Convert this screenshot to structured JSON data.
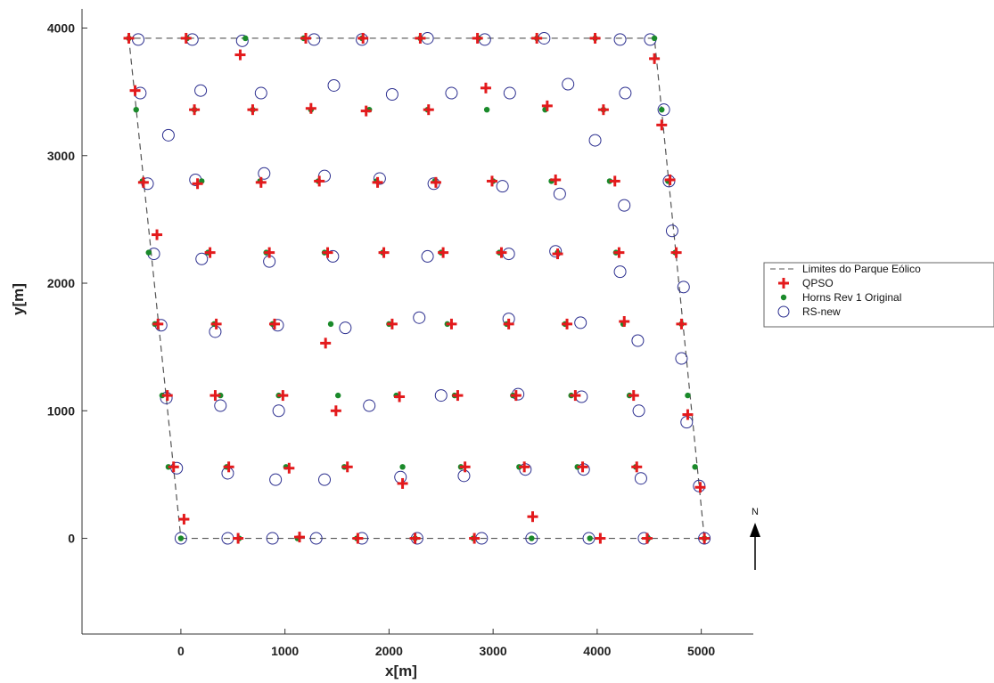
{
  "chart_data": {
    "type": "scatter",
    "xlabel": "x[m]",
    "ylabel": "y[m]",
    "xlim": [
      -950,
      5500
    ],
    "ylim": [
      -750,
      4150
    ],
    "xticks": [
      0,
      1000,
      2000,
      3000,
      4000,
      5000
    ],
    "yticks": [
      0,
      1000,
      2000,
      3000,
      4000
    ],
    "xtick_labels": [
      "0",
      "1000",
      "2000",
      "3000",
      "4000",
      "5000"
    ],
    "ytick_labels": [
      "0",
      "1000",
      "2000",
      "3000",
      "4000"
    ],
    "grid": false,
    "legend_position": "outside-right",
    "north_label": "N",
    "boundary": {
      "name": "Limites do Parque Eólico",
      "color": "#555555",
      "points": [
        [
          0,
          0
        ],
        [
          5030,
          0
        ],
        [
          4550,
          3920
        ],
        [
          -500,
          3920
        ],
        [
          0,
          0
        ]
      ]
    },
    "series": [
      {
        "name": "QPSO",
        "color": "#e31a1c",
        "marker": "plus",
        "points": [
          [
            -500,
            3920
          ],
          [
            50,
            3920
          ],
          [
            570,
            3790
          ],
          [
            1200,
            3920
          ],
          [
            1750,
            3920
          ],
          [
            2300,
            3920
          ],
          [
            2850,
            3920
          ],
          [
            3420,
            3920
          ],
          [
            3980,
            3920
          ],
          [
            4550,
            3760
          ],
          [
            -440,
            3510
          ],
          [
            130,
            3360
          ],
          [
            690,
            3360
          ],
          [
            1250,
            3370
          ],
          [
            1780,
            3350
          ],
          [
            2380,
            3360
          ],
          [
            2930,
            3530
          ],
          [
            3520,
            3390
          ],
          [
            4060,
            3360
          ],
          [
            4620,
            3240
          ],
          [
            -360,
            2790
          ],
          [
            160,
            2780
          ],
          [
            770,
            2790
          ],
          [
            1330,
            2800
          ],
          [
            1890,
            2790
          ],
          [
            2450,
            2790
          ],
          [
            2990,
            2800
          ],
          [
            3600,
            2810
          ],
          [
            4170,
            2800
          ],
          [
            4700,
            2810
          ],
          [
            -230,
            2380
          ],
          [
            280,
            2240
          ],
          [
            850,
            2240
          ],
          [
            1410,
            2240
          ],
          [
            1950,
            2240
          ],
          [
            2520,
            2240
          ],
          [
            3080,
            2240
          ],
          [
            3620,
            2230
          ],
          [
            4210,
            2240
          ],
          [
            4760,
            2240
          ],
          [
            -220,
            1680
          ],
          [
            340,
            1680
          ],
          [
            900,
            1680
          ],
          [
            1390,
            1530
          ],
          [
            2030,
            1680
          ],
          [
            2600,
            1680
          ],
          [
            3150,
            1680
          ],
          [
            3710,
            1680
          ],
          [
            4260,
            1700
          ],
          [
            4810,
            1680
          ],
          [
            -130,
            1120
          ],
          [
            330,
            1120
          ],
          [
            980,
            1120
          ],
          [
            1490,
            1000
          ],
          [
            2100,
            1110
          ],
          [
            2660,
            1120
          ],
          [
            3220,
            1120
          ],
          [
            3790,
            1120
          ],
          [
            4350,
            1120
          ],
          [
            4870,
            970
          ],
          [
            -70,
            560
          ],
          [
            460,
            560
          ],
          [
            1040,
            550
          ],
          [
            1600,
            560
          ],
          [
            2130,
            430
          ],
          [
            2730,
            560
          ],
          [
            3300,
            560
          ],
          [
            3860,
            560
          ],
          [
            4380,
            560
          ],
          [
            4990,
            400
          ],
          [
            30,
            150
          ],
          [
            550,
            0
          ],
          [
            1140,
            10
          ],
          [
            1700,
            0
          ],
          [
            2250,
            0
          ],
          [
            2820,
            0
          ],
          [
            3380,
            170
          ],
          [
            4030,
            0
          ],
          [
            4480,
            0
          ],
          [
            5030,
            0
          ]
        ]
      },
      {
        "name": "Horns Rev 1 Original",
        "color": "#1a8a2a",
        "marker": "dot",
        "points": [
          [
            -500,
            3920
          ],
          [
            60,
            3920
          ],
          [
            620,
            3920
          ],
          [
            1180,
            3920
          ],
          [
            1740,
            3920
          ],
          [
            2300,
            3920
          ],
          [
            2860,
            3920
          ],
          [
            3420,
            3920
          ],
          [
            3980,
            3920
          ],
          [
            4550,
            3920
          ],
          [
            -430,
            3360
          ],
          [
            130,
            3360
          ],
          [
            690,
            3360
          ],
          [
            1250,
            3360
          ],
          [
            1810,
            3360
          ],
          [
            2370,
            3360
          ],
          [
            2940,
            3360
          ],
          [
            3500,
            3360
          ],
          [
            4060,
            3360
          ],
          [
            4620,
            3360
          ],
          [
            -370,
            2800
          ],
          [
            200,
            2800
          ],
          [
            760,
            2800
          ],
          [
            1320,
            2800
          ],
          [
            1880,
            2800
          ],
          [
            2440,
            2800
          ],
          [
            3000,
            2800
          ],
          [
            3560,
            2800
          ],
          [
            4120,
            2800
          ],
          [
            4680,
            2800
          ],
          [
            -310,
            2240
          ],
          [
            260,
            2240
          ],
          [
            820,
            2240
          ],
          [
            1380,
            2240
          ],
          [
            1940,
            2240
          ],
          [
            2500,
            2240
          ],
          [
            3060,
            2240
          ],
          [
            3620,
            2240
          ],
          [
            4180,
            2240
          ],
          [
            4750,
            2240
          ],
          [
            -250,
            1680
          ],
          [
            320,
            1680
          ],
          [
            880,
            1680
          ],
          [
            1440,
            1680
          ],
          [
            2000,
            1680
          ],
          [
            2560,
            1680
          ],
          [
            3130,
            1680
          ],
          [
            3690,
            1680
          ],
          [
            4250,
            1680
          ],
          [
            4810,
            1680
          ],
          [
            -180,
            1120
          ],
          [
            380,
            1120
          ],
          [
            940,
            1120
          ],
          [
            1510,
            1120
          ],
          [
            2070,
            1120
          ],
          [
            2630,
            1120
          ],
          [
            3190,
            1120
          ],
          [
            3750,
            1120
          ],
          [
            4310,
            1120
          ],
          [
            4870,
            1120
          ],
          [
            -120,
            560
          ],
          [
            440,
            560
          ],
          [
            1010,
            560
          ],
          [
            1570,
            560
          ],
          [
            2130,
            560
          ],
          [
            2690,
            560
          ],
          [
            3250,
            560
          ],
          [
            3810,
            560
          ],
          [
            4370,
            560
          ],
          [
            4940,
            560
          ],
          [
            0,
            0
          ],
          [
            560,
            0
          ],
          [
            1120,
            0
          ],
          [
            1690,
            0
          ],
          [
            2250,
            0
          ],
          [
            2810,
            0
          ],
          [
            3370,
            0
          ],
          [
            3930,
            0
          ],
          [
            4490,
            0
          ],
          [
            5030,
            0
          ]
        ]
      },
      {
        "name": "RS-new",
        "color": "#2c2f8f",
        "marker": "circle",
        "points": [
          [
            -410,
            3910
          ],
          [
            110,
            3910
          ],
          [
            590,
            3900
          ],
          [
            1280,
            3910
          ],
          [
            1740,
            3910
          ],
          [
            2370,
            3920
          ],
          [
            2920,
            3910
          ],
          [
            3490,
            3920
          ],
          [
            4220,
            3910
          ],
          [
            4510,
            3910
          ],
          [
            -390,
            3490
          ],
          [
            190,
            3510
          ],
          [
            770,
            3490
          ],
          [
            1470,
            3550
          ],
          [
            2030,
            3480
          ],
          [
            2600,
            3490
          ],
          [
            3160,
            3490
          ],
          [
            3720,
            3560
          ],
          [
            4270,
            3490
          ],
          [
            4640,
            3360
          ],
          [
            -320,
            2780
          ],
          [
            140,
            2810
          ],
          [
            800,
            2860
          ],
          [
            1380,
            2840
          ],
          [
            1910,
            2820
          ],
          [
            2430,
            2780
          ],
          [
            3090,
            2760
          ],
          [
            3640,
            2700
          ],
          [
            3980,
            3120
          ],
          [
            -120,
            3160
          ],
          [
            4260,
            2610
          ],
          [
            4690,
            2800
          ],
          [
            4720,
            2410
          ],
          [
            4830,
            1970
          ],
          [
            4220,
            2090
          ],
          [
            -260,
            2230
          ],
          [
            200,
            2190
          ],
          [
            850,
            2170
          ],
          [
            1460,
            2210
          ],
          [
            2370,
            2210
          ],
          [
            3150,
            2230
          ],
          [
            3600,
            2250
          ],
          [
            -190,
            1670
          ],
          [
            330,
            1620
          ],
          [
            930,
            1670
          ],
          [
            1580,
            1650
          ],
          [
            2290,
            1730
          ],
          [
            3150,
            1720
          ],
          [
            3840,
            1690
          ],
          [
            4390,
            1550
          ],
          [
            4810,
            1410
          ],
          [
            -140,
            1100
          ],
          [
            380,
            1040
          ],
          [
            940,
            1000
          ],
          [
            1810,
            1040
          ],
          [
            2500,
            1120
          ],
          [
            3240,
            1130
          ],
          [
            3850,
            1110
          ],
          [
            4400,
            1000
          ],
          [
            4860,
            910
          ],
          [
            -40,
            550
          ],
          [
            450,
            510
          ],
          [
            910,
            460
          ],
          [
            1380,
            460
          ],
          [
            2110,
            480
          ],
          [
            2720,
            490
          ],
          [
            3310,
            540
          ],
          [
            3870,
            540
          ],
          [
            4420,
            470
          ],
          [
            4980,
            410
          ],
          [
            0,
            0
          ],
          [
            450,
            0
          ],
          [
            880,
            0
          ],
          [
            1300,
            0
          ],
          [
            1740,
            0
          ],
          [
            2270,
            0
          ],
          [
            2890,
            0
          ],
          [
            3370,
            0
          ],
          [
            3920,
            0
          ],
          [
            4450,
            0
          ],
          [
            5030,
            0
          ]
        ]
      }
    ]
  }
}
